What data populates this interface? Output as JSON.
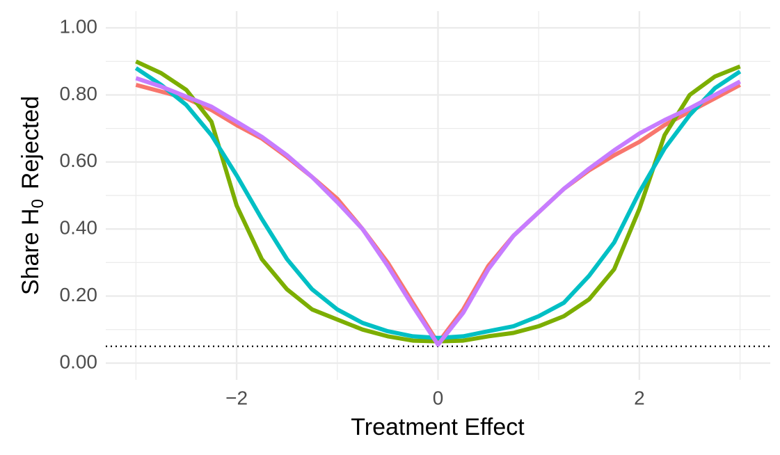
{
  "chart_data": {
    "type": "line",
    "xlabel": "Treatment Effect",
    "ylabel": [
      "Share H",
      "0",
      "Rejected"
    ],
    "x": [
      -3,
      -2.75,
      -2.5,
      -2.25,
      -2,
      -1.75,
      -1.5,
      -1.25,
      -1,
      -0.75,
      -0.5,
      -0.25,
      0,
      0.25,
      0.5,
      0.75,
      1,
      1.25,
      1.5,
      1.75,
      2,
      2.25,
      2.5,
      2.75,
      3
    ],
    "series": [
      {
        "color": "#F8766D",
        "values": [
          0.83,
          0.81,
          0.79,
          0.755,
          0.71,
          0.67,
          0.615,
          0.555,
          0.49,
          0.4,
          0.3,
          0.18,
          0.06,
          0.16,
          0.29,
          0.38,
          0.45,
          0.52,
          0.575,
          0.62,
          0.66,
          0.71,
          0.75,
          0.79,
          0.83
        ]
      },
      {
        "color": "#7CAE00",
        "values": [
          0.9,
          0.865,
          0.815,
          0.72,
          0.47,
          0.31,
          0.22,
          0.16,
          0.13,
          0.1,
          0.08,
          0.067,
          0.065,
          0.067,
          0.08,
          0.09,
          0.11,
          0.14,
          0.19,
          0.28,
          0.46,
          0.68,
          0.8,
          0.855,
          0.885
        ]
      },
      {
        "color": "#00BFC4",
        "values": [
          0.88,
          0.83,
          0.77,
          0.68,
          0.56,
          0.43,
          0.31,
          0.22,
          0.16,
          0.12,
          0.095,
          0.08,
          0.075,
          0.08,
          0.095,
          0.11,
          0.14,
          0.18,
          0.26,
          0.36,
          0.51,
          0.64,
          0.74,
          0.82,
          0.87
        ]
      },
      {
        "color": "#C77CFF",
        "values": [
          0.85,
          0.825,
          0.795,
          0.765,
          0.72,
          0.675,
          0.62,
          0.555,
          0.48,
          0.4,
          0.29,
          0.17,
          0.055,
          0.15,
          0.28,
          0.38,
          0.45,
          0.52,
          0.58,
          0.635,
          0.685,
          0.725,
          0.76,
          0.8,
          0.84
        ]
      }
    ],
    "xlim": [
      -3.3,
      3.3
    ],
    "ylim": [
      -0.05,
      1.05
    ],
    "xticks": [
      {
        "value": -2,
        "label": "−2"
      },
      0,
      2
    ],
    "yticks": [
      {
        "value": 0,
        "label": "0.00"
      },
      {
        "value": 0.2,
        "label": "0.20"
      },
      {
        "value": 0.4,
        "label": "0.40"
      },
      {
        "value": 0.6,
        "label": "0.60"
      },
      {
        "value": 0.8,
        "label": "0.80"
      },
      {
        "value": 1,
        "label": "1.00"
      }
    ],
    "xminor_ticks": [
      -3,
      -1,
      1,
      3
    ],
    "yminor_ticks": [
      0.1,
      0.3,
      0.5,
      0.7,
      0.9
    ],
    "hline": 0.05,
    "grid": true
  }
}
